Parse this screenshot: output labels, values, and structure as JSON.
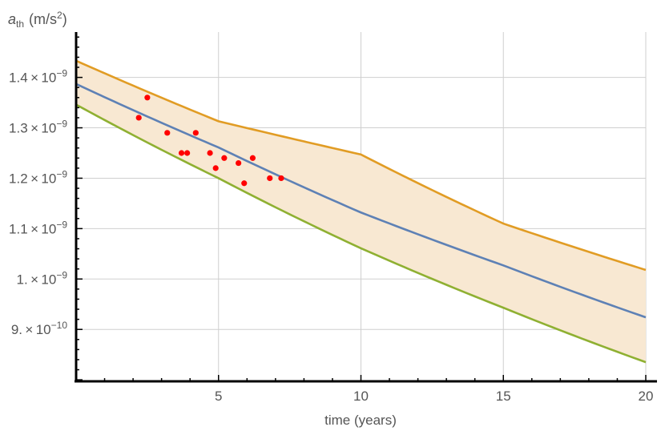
{
  "chart_data": {
    "type": "line",
    "title": "",
    "xlabel": "time (years)",
    "ylabel": "a_th (m/s²)",
    "ylabel_parts": {
      "base": "a",
      "sub": "th",
      "unit": "(m/s",
      "sup": "2",
      "close": ")"
    },
    "xlim": [
      0,
      20
    ],
    "ylim": [
      7.97e-10,
      1.49e-09
    ],
    "grid": true,
    "x_ticks": [
      5,
      10,
      15,
      20
    ],
    "x_tick_labels": [
      "5",
      "10",
      "15",
      "20"
    ],
    "y_ticks": [
      9e-10,
      1e-09,
      1.1e-09,
      1.2e-09,
      1.3e-09,
      1.4e-09
    ],
    "y_tick_labels": [
      {
        "mant": "9. × 10",
        "exp": "−10"
      },
      {
        "mant": "1. × 10",
        "exp": "−9"
      },
      {
        "mant": "1.1 × 10",
        "exp": "−9"
      },
      {
        "mant": "1.2 × 10",
        "exp": "−9"
      },
      {
        "mant": "1.3 × 10",
        "exp": "−9"
      },
      {
        "mant": "1.4 × 10",
        "exp": "−9"
      }
    ],
    "series": [
      {
        "color": "#e19c24",
        "x": [
          0,
          5,
          10,
          15,
          20
        ],
        "y": [
          1.433e-09,
          1.313e-09,
          1.247e-09,
          1.11e-09,
          1.018e-09
        ]
      },
      {
        "color": "#5e81b5",
        "x": [
          0,
          5,
          10,
          15,
          20
        ],
        "y": [
          1.387e-09,
          1.261e-09,
          1.132e-09,
          1.027e-09,
          9.24e-10
        ]
      },
      {
        "color": "#8fb032",
        "x": [
          0,
          5,
          10,
          15,
          20
        ],
        "y": [
          1.346e-09,
          1.2e-09,
          1.061e-09,
          9.43e-10,
          8.35e-10
        ]
      }
    ],
    "band": {
      "between": [
        0,
        2
      ],
      "color": "#f8e8d2"
    },
    "scatter": {
      "color": "#ff0000",
      "points": [
        [
          2.2,
          1.32e-09
        ],
        [
          2.5,
          1.36e-09
        ],
        [
          3.2,
          1.29e-09
        ],
        [
          3.7,
          1.25e-09
        ],
        [
          3.9,
          1.25e-09
        ],
        [
          4.2,
          1.29e-09
        ],
        [
          4.7,
          1.25e-09
        ],
        [
          4.9,
          1.22e-09
        ],
        [
          5.2,
          1.24e-09
        ],
        [
          5.7,
          1.23e-09
        ],
        [
          5.9,
          1.19e-09
        ],
        [
          6.2,
          1.24e-09
        ],
        [
          6.8,
          1.2e-09
        ],
        [
          7.2,
          1.2e-09
        ]
      ]
    }
  }
}
